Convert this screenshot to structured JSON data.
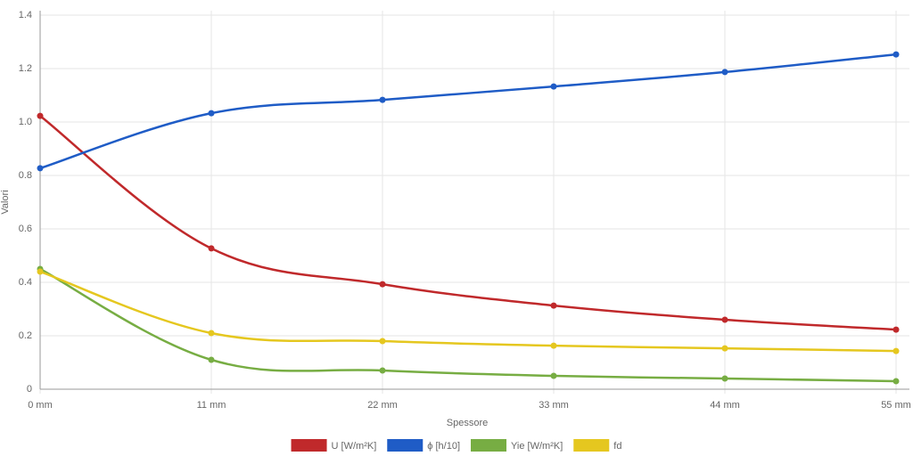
{
  "chart_data": {
    "type": "line",
    "x_label": "Spessore",
    "y_label": "Valori",
    "categories": [
      "0 mm",
      "11 mm",
      "22 mm",
      "33 mm",
      "44 mm",
      "55 mm"
    ],
    "series": [
      {
        "name": "U [W/m²K]",
        "color": "#c0292b",
        "values": [
          1.023,
          0.527,
          0.393,
          0.313,
          0.26,
          0.223
        ]
      },
      {
        "name": "ϕ [h/10]",
        "color": "#1f5cc6",
        "values": [
          0.827,
          1.033,
          1.083,
          1.133,
          1.187,
          1.253
        ]
      },
      {
        "name": "Yie [W/m²K]",
        "color": "#77ad43",
        "values": [
          0.45,
          0.11,
          0.07,
          0.05,
          0.04,
          0.03
        ]
      },
      {
        "name": "fd",
        "color": "#e5c71f",
        "values": [
          0.44,
          0.21,
          0.18,
          0.163,
          0.153,
          0.143
        ]
      }
    ],
    "ylim": [
      0,
      1.4
    ],
    "yticks": [
      0,
      0.2,
      0.4,
      0.6,
      0.8,
      {
        "value": 1,
        "label": "1.0"
      },
      1.2,
      1.4
    ],
    "grid": true,
    "legend": "bottom",
    "smooth": true
  }
}
